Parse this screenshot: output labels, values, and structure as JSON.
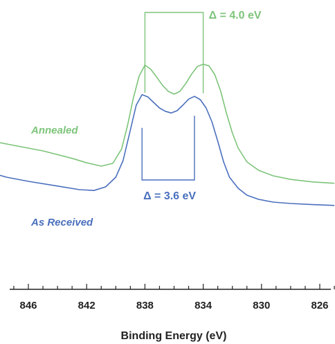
{
  "chart_data": {
    "type": "line",
    "title": "",
    "xlabel": "Binding Energy (eV)",
    "ylabel": "",
    "x_reversed": true,
    "xlim": [
      848,
      825
    ],
    "xticks": [
      846,
      842,
      838,
      834,
      830,
      826
    ],
    "y_axis_shown": false,
    "grid": false,
    "colors": {
      "annealed": "#7dc47a",
      "as_received": "#4a6fbd",
      "axis": "#222222"
    },
    "series": [
      {
        "name": "Annealed",
        "color": "#7dc47a",
        "points": [
          [
            848.5,
            0.52
          ],
          [
            847.0,
            0.505
          ],
          [
            845.0,
            0.485
          ],
          [
            843.0,
            0.458
          ],
          [
            842.0,
            0.442
          ],
          [
            841.0,
            0.43
          ],
          [
            840.2,
            0.44
          ],
          [
            839.6,
            0.492
          ],
          [
            839.2,
            0.575
          ],
          [
            838.8,
            0.675
          ],
          [
            838.4,
            0.755
          ],
          [
            838.0,
            0.795
          ],
          [
            837.6,
            0.78
          ],
          [
            837.2,
            0.752
          ],
          [
            836.8,
            0.722
          ],
          [
            836.4,
            0.7
          ],
          [
            836.0,
            0.69
          ],
          [
            835.6,
            0.7
          ],
          [
            835.2,
            0.728
          ],
          [
            834.8,
            0.762
          ],
          [
            834.4,
            0.79
          ],
          [
            834.0,
            0.798
          ],
          [
            833.6,
            0.792
          ],
          [
            833.2,
            0.76
          ],
          [
            832.8,
            0.7
          ],
          [
            832.4,
            0.62
          ],
          [
            832.0,
            0.55
          ],
          [
            831.6,
            0.495
          ],
          [
            831.0,
            0.445
          ],
          [
            830.2,
            0.415
          ],
          [
            829.2,
            0.395
          ],
          [
            828.0,
            0.382
          ],
          [
            826.5,
            0.373
          ],
          [
            825.0,
            0.368
          ]
        ]
      },
      {
        "name": "As Received",
        "color": "#4a6fbd",
        "points": [
          [
            848.5,
            0.405
          ],
          [
            847.5,
            0.39
          ],
          [
            846.0,
            0.375
          ],
          [
            844.0,
            0.358
          ],
          [
            842.5,
            0.345
          ],
          [
            841.5,
            0.342
          ],
          [
            840.7,
            0.355
          ],
          [
            840.0,
            0.39
          ],
          [
            839.5,
            0.45
          ],
          [
            839.0,
            0.56
          ],
          [
            838.6,
            0.65
          ],
          [
            838.2,
            0.688
          ],
          [
            837.8,
            0.68
          ],
          [
            837.4,
            0.66
          ],
          [
            837.0,
            0.64
          ],
          [
            836.6,
            0.628
          ],
          [
            836.2,
            0.622
          ],
          [
            835.8,
            0.63
          ],
          [
            835.4,
            0.65
          ],
          [
            835.0,
            0.672
          ],
          [
            834.6,
            0.682
          ],
          [
            834.2,
            0.67
          ],
          [
            833.8,
            0.64
          ],
          [
            833.4,
            0.59
          ],
          [
            833.0,
            0.52
          ],
          [
            832.6,
            0.445
          ],
          [
            832.2,
            0.39
          ],
          [
            831.6,
            0.35
          ],
          [
            831.0,
            0.325
          ],
          [
            830.2,
            0.31
          ],
          [
            829.2,
            0.3
          ],
          [
            828.0,
            0.295
          ],
          [
            826.5,
            0.291
          ],
          [
            825.0,
            0.288
          ]
        ]
      }
    ],
    "annotations": [
      {
        "text": "Annealed",
        "series": "Annealed"
      },
      {
        "text": "As Received",
        "series": "As Received"
      },
      {
        "text": "Δ = 4.0 eV",
        "series": "Annealed",
        "from_x": 838.0,
        "to_x": 834.0
      },
      {
        "text": "Δ = 3.6 eV",
        "series": "As Received",
        "from_x": 838.2,
        "to_x": 834.6
      }
    ]
  }
}
